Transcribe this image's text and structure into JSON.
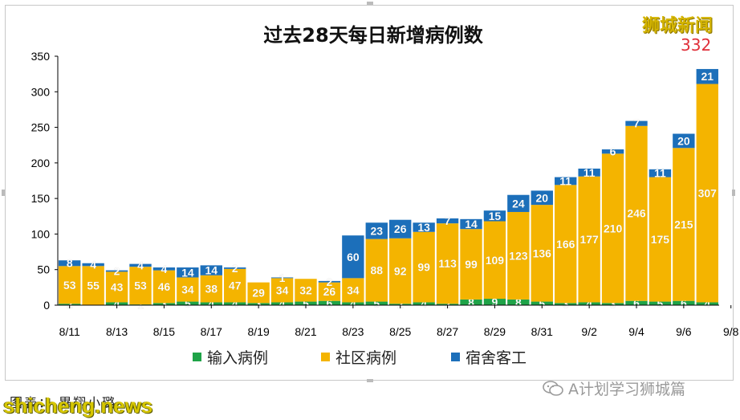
{
  "brand": {
    "name": "狮城新闻",
    "total": "332"
  },
  "caption": "图表： 畢翔小璐",
  "wechat_label": "A计划学习狮城篇",
  "watermark": "shicheng.news",
  "colors": {
    "import": "#1fa348",
    "community": "#f4b400",
    "dorm": "#1c6fba",
    "axis": "#000000"
  },
  "chart_data": {
    "type": "bar",
    "stacked": true,
    "title": "过去28天每日新增病例数",
    "xlabel": "",
    "ylabel": "",
    "ylim": [
      0,
      350
    ],
    "yticks": [
      0,
      50,
      100,
      150,
      200,
      250,
      300,
      350
    ],
    "grid": false,
    "legend_position": "bottom",
    "categories": [
      "8/11",
      "8/12",
      "8/13",
      "8/14",
      "8/15",
      "8/16",
      "8/17",
      "8/18",
      "8/19",
      "8/20",
      "8/21",
      "8/22",
      "8/23",
      "8/24",
      "8/25",
      "8/26",
      "8/27",
      "8/28",
      "8/29",
      "8/30",
      "8/31",
      "9/1",
      "9/2",
      "9/3",
      "9/4",
      "9/5",
      "9/6",
      "9/7"
    ],
    "tick_labels": [
      "8/11",
      "8/13",
      "8/15",
      "8/17",
      "8/19",
      "8/21",
      "8/23",
      "8/25",
      "8/27",
      "8/29",
      "8/31",
      "9/2",
      "9/4",
      "9/6",
      "9/8"
    ],
    "series": [
      {
        "name": "输入病例",
        "key": "import",
        "values": [
          2,
          0,
          4,
          1,
          3,
          5,
          4,
          4,
          3,
          4,
          5,
          6,
          4,
          5,
          2,
          4,
          2,
          8,
          9,
          8,
          5,
          3,
          4,
          3,
          6,
          5,
          6,
          4
        ]
      },
      {
        "name": "社区病例",
        "key": "community",
        "values": [
          53,
          55,
          43,
          53,
          46,
          34,
          38,
          47,
          29,
          34,
          32,
          26,
          34,
          88,
          92,
          99,
          113,
          99,
          109,
          123,
          136,
          166,
          177,
          210,
          246,
          175,
          215,
          307
        ]
      },
      {
        "name": "宿舍客工",
        "key": "dorm",
        "values": [
          8,
          4,
          2,
          4,
          4,
          14,
          14,
          2,
          0,
          1,
          0,
          2,
          60,
          23,
          26,
          13,
          7,
          14,
          15,
          24,
          20,
          11,
          11,
          6,
          7,
          11,
          20,
          21
        ]
      }
    ],
    "annotations": [
      "332"
    ]
  }
}
